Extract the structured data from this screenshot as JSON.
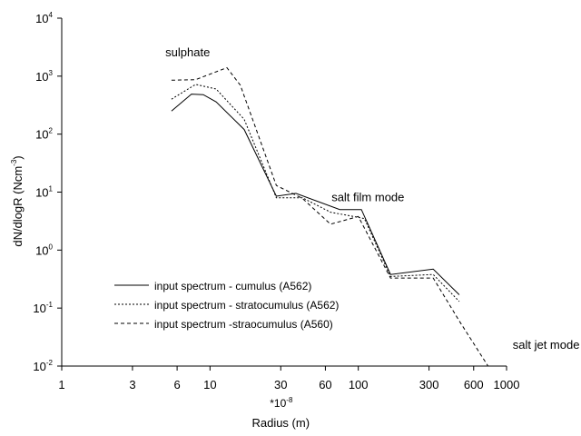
{
  "chart_data": {
    "type": "line",
    "title": "",
    "xlabel": "Radius (m)",
    "xlabel_multiplier": "*10",
    "xlabel_multiplier_exp": "-8",
    "ylabel": "dN/dlogR (Ncm",
    "ylabel_exp": "-3",
    "ylabel_close": ")",
    "xscale": "log",
    "yscale": "log",
    "xlim": [
      1,
      1000
    ],
    "ylim": [
      0.01,
      10000
    ],
    "grid": false,
    "legend_position": "lower-left",
    "x_ticks": [
      {
        "value": 1,
        "label": "1"
      },
      {
        "value": 3,
        "label": "3"
      },
      {
        "value": 6,
        "label": "6"
      },
      {
        "value": 10,
        "label": "10"
      },
      {
        "value": 30,
        "label": "30"
      },
      {
        "value": 60,
        "label": "60"
      },
      {
        "value": 100,
        "label": "100"
      },
      {
        "value": 300,
        "label": "300"
      },
      {
        "value": 600,
        "label": "600"
      },
      {
        "value": 1000,
        "label": "1000"
      }
    ],
    "y_ticks": [
      {
        "value": 0.01,
        "base": "10",
        "exp": "-2"
      },
      {
        "value": 0.1,
        "base": "10",
        "exp": "-1"
      },
      {
        "value": 1,
        "base": "10",
        "exp": "0"
      },
      {
        "value": 10,
        "base": "10",
        "exp": "1"
      },
      {
        "value": 100,
        "base": "10",
        "exp": "2"
      },
      {
        "value": 1000,
        "base": "10",
        "exp": "3"
      },
      {
        "value": 10000,
        "base": "10",
        "exp": "4"
      }
    ],
    "annotations": [
      {
        "text": "sulphate",
        "x": 5.0,
        "y": 2200
      },
      {
        "text": "salt film mode",
        "x": 66,
        "y": 7
      },
      {
        "text": "salt jet mode",
        "x": 1100,
        "y": 0.02
      }
    ],
    "series": [
      {
        "name": "input spectrum - cumulus (A562)",
        "dash": "none",
        "points": [
          [
            5.5,
            250
          ],
          [
            7.5,
            490
          ],
          [
            9,
            480
          ],
          [
            11,
            360
          ],
          [
            17,
            120
          ],
          [
            28,
            8.5
          ],
          [
            38,
            9.5
          ],
          [
            75,
            5
          ],
          [
            105,
            5
          ],
          [
            165,
            0.38
          ],
          [
            320,
            0.47
          ],
          [
            480,
            0.17
          ]
        ]
      },
      {
        "name": "input spectrum - stratocumulus (A562)",
        "dash": "2,2",
        "points": [
          [
            5.5,
            400
          ],
          [
            8,
            720
          ],
          [
            11,
            600
          ],
          [
            17,
            180
          ],
          [
            28,
            8
          ],
          [
            42,
            8
          ],
          [
            65,
            4.5
          ],
          [
            110,
            3.5
          ],
          [
            165,
            0.35
          ],
          [
            320,
            0.38
          ],
          [
            480,
            0.13
          ]
        ]
      },
      {
        "name": "input spectrum -straocumulus (A560)",
        "dash": "4,3",
        "points": [
          [
            5.5,
            850
          ],
          [
            8,
            870
          ],
          [
            13,
            1400
          ],
          [
            16,
            700
          ],
          [
            28,
            13
          ],
          [
            42,
            7.8
          ],
          [
            65,
            2.8
          ],
          [
            100,
            3.8
          ],
          [
            165,
            0.33
          ],
          [
            320,
            0.33
          ],
          [
            480,
            0.06
          ],
          [
            750,
            0.01
          ]
        ]
      }
    ]
  }
}
